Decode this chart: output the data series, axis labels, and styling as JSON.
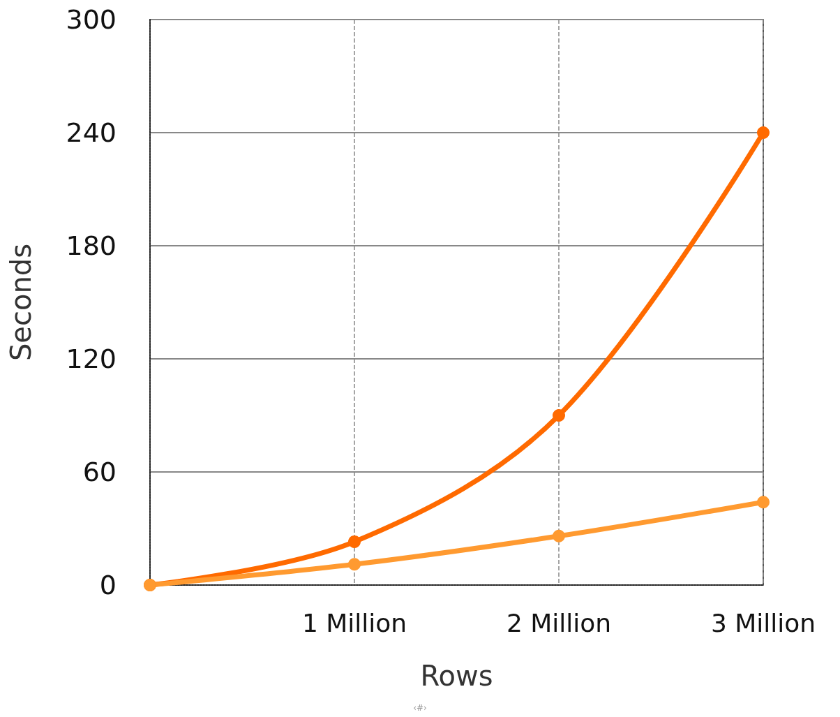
{
  "chart_data": {
    "type": "line",
    "xlabel": "Rows",
    "ylabel": "Seconds",
    "categories": [
      null,
      "1 Million",
      "2 Million",
      "3 Million"
    ],
    "ylim": [
      0,
      300
    ],
    "yticks": [
      0,
      60,
      120,
      180,
      240,
      300
    ],
    "series": [
      {
        "color": "#ff6a00",
        "values": [
          0,
          23,
          90,
          240
        ]
      },
      {
        "color": "#ff9a30",
        "values": [
          0,
          11,
          26,
          44
        ]
      }
    ],
    "grid": true,
    "marker": "circle",
    "line_style": "solid",
    "annotations": [
      "‹#›"
    ]
  }
}
